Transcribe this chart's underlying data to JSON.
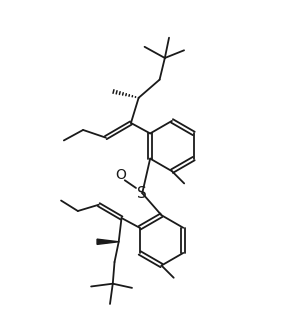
{
  "bg_color": "#ffffff",
  "line_color": "#1a1a1a",
  "line_width": 1.3,
  "font_size": 9,
  "s_fontsize": 11,
  "o_fontsize": 10
}
